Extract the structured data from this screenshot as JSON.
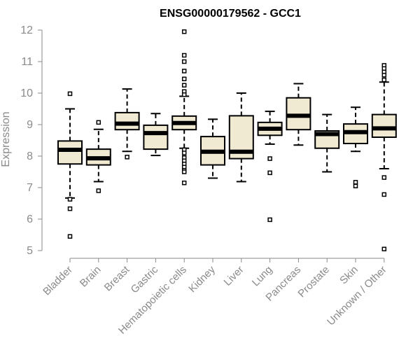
{
  "chart_data": {
    "type": "box",
    "title": "ENSG00000179562 - GCC1",
    "xlabel": "",
    "ylabel": "Expression",
    "ylim": [
      5,
      12
    ],
    "yticks": [
      5,
      6,
      7,
      8,
      9,
      10,
      11,
      12
    ],
    "grid": false,
    "legend": "none",
    "colors": {
      "box_fill": "#f0ead2",
      "box_stroke": "#000000",
      "median": "#000000",
      "axis": "#8a8a8a",
      "tick_text": "#8a8a8a",
      "title_text": "#000000"
    },
    "categories": [
      "Bladder",
      "Brain",
      "Breast",
      "Gastric",
      "Hematopoietic cells",
      "Kidney",
      "Liver",
      "Lung",
      "Pancreas",
      "Prostate",
      "Skin",
      "Unknown / Other"
    ],
    "boxes": [
      {
        "category": "Bladder",
        "q1": 7.75,
        "median": 8.2,
        "q3": 8.48,
        "whisker_low": 6.67,
        "whisker_high": 9.5,
        "outliers": [
          9.98,
          6.63,
          6.33,
          5.45
        ]
      },
      {
        "category": "Brain",
        "q1": 7.72,
        "median": 7.93,
        "q3": 8.22,
        "whisker_low": 7.19,
        "whisker_high": 8.85,
        "outliers": [
          9.07,
          6.9
        ]
      },
      {
        "category": "Breast",
        "q1": 8.84,
        "median": 9.03,
        "q3": 9.38,
        "whisker_low": 8.15,
        "whisker_high": 10.13,
        "outliers": [
          7.97
        ]
      },
      {
        "category": "Gastric",
        "q1": 8.22,
        "median": 8.73,
        "q3": 8.98,
        "whisker_low": 8.02,
        "whisker_high": 9.35,
        "outliers": []
      },
      {
        "category": "Hematopoietic cells",
        "q1": 8.84,
        "median": 9.05,
        "q3": 9.27,
        "whisker_low": 8.25,
        "whisker_high": 9.9,
        "outliers": [
          11.95,
          11.2,
          11.0,
          10.7,
          10.45,
          10.25,
          10.05,
          9.95,
          8.2,
          8.1,
          7.95,
          7.85,
          7.75,
          7.65,
          7.55,
          7.5,
          7.15
        ]
      },
      {
        "category": "Kidney",
        "q1": 7.72,
        "median": 8.14,
        "q3": 8.62,
        "whisker_low": 7.3,
        "whisker_high": 9.17,
        "outliers": []
      },
      {
        "category": "Liver",
        "q1": 7.92,
        "median": 8.14,
        "q3": 9.28,
        "whisker_low": 7.19,
        "whisker_high": 10.0,
        "outliers": []
      },
      {
        "category": "Lung",
        "q1": 8.66,
        "median": 8.87,
        "q3": 9.07,
        "whisker_low": 8.38,
        "whisker_high": 9.42,
        "outliers": [
          7.92,
          7.47,
          5.98
        ]
      },
      {
        "category": "Pancreas",
        "q1": 8.84,
        "median": 9.28,
        "q3": 9.85,
        "whisker_low": 8.35,
        "whisker_high": 10.3,
        "outliers": []
      },
      {
        "category": "Prostate",
        "q1": 8.25,
        "median": 8.7,
        "q3": 8.8,
        "whisker_low": 7.5,
        "whisker_high": 9.32,
        "outliers": []
      },
      {
        "category": "Skin",
        "q1": 8.4,
        "median": 8.76,
        "q3": 9.02,
        "whisker_low": 8.15,
        "whisker_high": 9.55,
        "outliers": [
          7.17,
          7.05
        ]
      },
      {
        "category": "Unknown / Other",
        "q1": 8.6,
        "median": 8.88,
        "q3": 9.32,
        "whisker_low": 7.6,
        "whisker_high": 10.35,
        "outliers": [
          10.88,
          10.78,
          10.67,
          10.57,
          10.42,
          7.32,
          6.78,
          5.05
        ]
      }
    ]
  }
}
